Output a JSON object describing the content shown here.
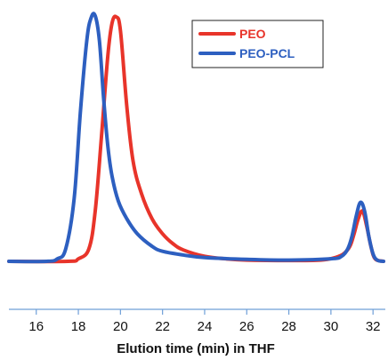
{
  "chart_data": {
    "type": "line",
    "title": "",
    "xlabel": "Elution time (min) in THF",
    "ylabel": "",
    "xlim": [
      14.7,
      32.5
    ],
    "ylim": [
      0,
      1.0
    ],
    "xticks": [
      16,
      18,
      20,
      22,
      24,
      26,
      28,
      30,
      32
    ],
    "xtick_labels": [
      "16",
      "18",
      "20",
      "22",
      "24",
      "26",
      "28",
      "30",
      "32"
    ],
    "grid": false,
    "legend_position": "top-right",
    "series": [
      {
        "name": "PEO",
        "color": "#e8342a",
        "x": [
          14.7,
          17.5,
          18.0,
          18.5,
          18.8,
          19.1,
          19.4,
          19.6,
          19.8,
          20.0,
          20.3,
          20.6,
          21.0,
          21.5,
          22.0,
          22.5,
          23.0,
          24.0,
          25.0,
          26.0,
          28.0,
          29.5,
          30.2,
          30.6,
          30.9,
          31.1,
          31.3,
          31.5,
          31.7,
          31.9,
          32.1,
          32.5
        ],
        "y": [
          0.0,
          0.0,
          0.01,
          0.05,
          0.2,
          0.5,
          0.82,
          0.95,
          0.975,
          0.92,
          0.62,
          0.4,
          0.27,
          0.17,
          0.11,
          0.07,
          0.045,
          0.02,
          0.01,
          0.005,
          0.003,
          0.005,
          0.015,
          0.03,
          0.06,
          0.11,
          0.17,
          0.2,
          0.14,
          0.06,
          0.01,
          0.0
        ]
      },
      {
        "name": "PEO-PCL",
        "color": "#2d5fc0",
        "x": [
          14.7,
          16.5,
          17.0,
          17.4,
          17.8,
          18.1,
          18.4,
          18.6,
          18.8,
          19.0,
          19.2,
          19.4,
          19.6,
          19.9,
          20.3,
          20.8,
          21.5,
          22.0,
          23.0,
          24.0,
          26.0,
          28.0,
          30.0,
          30.5,
          30.8,
          31.0,
          31.2,
          31.4,
          31.6,
          31.8,
          32.0,
          32.2,
          32.5
        ],
        "y": [
          0.0,
          0.0,
          0.01,
          0.05,
          0.25,
          0.6,
          0.88,
          0.97,
          0.98,
          0.88,
          0.65,
          0.46,
          0.34,
          0.24,
          0.17,
          0.11,
          0.06,
          0.04,
          0.025,
          0.015,
          0.008,
          0.005,
          0.01,
          0.02,
          0.05,
          0.1,
          0.18,
          0.235,
          0.2,
          0.1,
          0.03,
          0.005,
          0.0
        ]
      }
    ]
  }
}
